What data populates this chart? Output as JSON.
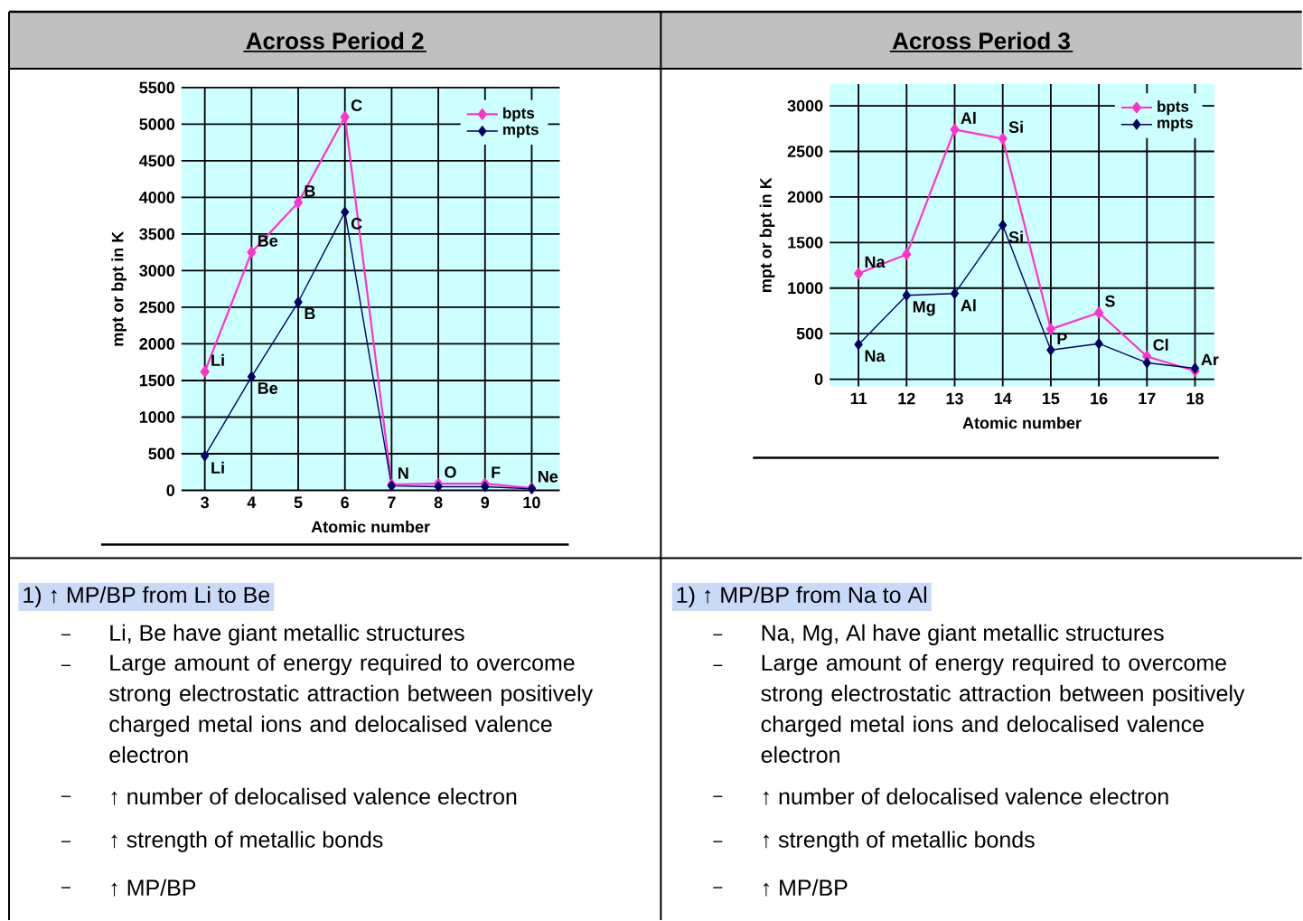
{
  "chart_data": [
    {
      "type": "line",
      "title": "Across Period 2",
      "xlabel": "Atomic number",
      "ylabel": "mpt or bpt in K",
      "x": [
        3,
        4,
        5,
        6,
        7,
        8,
        9,
        10
      ],
      "series": [
        {
          "name": "bpts",
          "color": "#ff33cc",
          "values": [
            1620,
            3250,
            3930,
            5100,
            80,
            90,
            90,
            30
          ]
        },
        {
          "name": "mpts",
          "color": "#000066",
          "values": [
            470,
            1550,
            2570,
            3800,
            60,
            50,
            50,
            20
          ]
        }
      ],
      "xlim": [
        2.5,
        10.6
      ],
      "ylim": [
        0,
        5500
      ],
      "xticks": [
        3,
        4,
        5,
        6,
        7,
        8,
        9,
        10
      ],
      "yticks": [
        0,
        500,
        1000,
        1500,
        2000,
        2500,
        3000,
        3500,
        4000,
        4500,
        5000,
        5500
      ],
      "grid": true,
      "legend": "top right",
      "marker": "diamond",
      "line_style": "solid",
      "annotations": [
        "1) ↑ MP/BP from Li to Be",
        "Li, Be have giant metallic structures",
        "Large amount of energy required to overcome strong electrostatic attraction between positively charged metal ions and delocalised valence electron",
        "↑ number of delocalised valence electron",
        "↑ strength of metallic bonds",
        "↑ MP/BP",
        {
          "text": "Li",
          "x": 3,
          "y": 1620
        },
        {
          "text": "Be",
          "x": 4,
          "y": 3250
        },
        {
          "text": "B",
          "x": 5,
          "y": 3930
        },
        {
          "text": "C",
          "x": 6,
          "y": 5100
        },
        {
          "text": "Li",
          "x": 3,
          "y": 470
        },
        {
          "text": "Be",
          "x": 4,
          "y": 1550
        },
        {
          "text": "B",
          "x": 5,
          "y": 2570
        },
        {
          "text": "C",
          "x": 6,
          "y": 3800
        },
        {
          "text": "N",
          "x": 7,
          "y": 80
        },
        {
          "text": "O",
          "x": 8,
          "y": 90
        },
        {
          "text": "F",
          "x": 9,
          "y": 90
        },
        {
          "text": "Ne",
          "x": 10,
          "y": 30
        }
      ]
    },
    {
      "type": "line",
      "title": "Across Period 3",
      "xlabel": "Atomic number",
      "ylabel": "mpt or bpt in K",
      "x": [
        11,
        12,
        13,
        14,
        15,
        16,
        17,
        18
      ],
      "series": [
        {
          "name": "bpts",
          "color": "#ff33cc",
          "values": [
            1160,
            1370,
            2740,
            2640,
            550,
            730,
            250,
            90
          ]
        },
        {
          "name": "mpts",
          "color": "#000066",
          "values": [
            380,
            920,
            940,
            1690,
            320,
            390,
            180,
            120
          ]
        }
      ],
      "xlim": [
        10.4,
        18.4
      ],
      "ylim": [
        -80,
        3240
      ],
      "xticks": [
        11,
        12,
        13,
        14,
        15,
        16,
        17,
        18
      ],
      "yticks": [
        0,
        500,
        1000,
        1500,
        2000,
        2500,
        3000
      ],
      "grid": true,
      "legend": "top right",
      "marker": "diamond",
      "line_style": "solid",
      "annotations": [
        "1) ↑ MP/BP from Na to Al",
        "Na, Mg, Al have giant metallic structures",
        "Large amount of energy required to overcome strong electrostatic attraction between positively charged metal ions and delocalised valence electron",
        "↑ number of delocalised valence electron",
        "↑ strength of metallic bonds",
        "↑ MP/BP",
        {
          "text": "Na",
          "x": 11,
          "y": 1160
        },
        {
          "text": "Mg",
          "x": 12,
          "y": 920
        },
        {
          "text": "Al",
          "x": 13,
          "y": 2740
        },
        {
          "text": "Si",
          "x": 14,
          "y": 2640
        },
        {
          "text": "S",
          "x": 16,
          "y": 730
        },
        {
          "text": "Na",
          "x": 11,
          "y": 380
        },
        {
          "text": "Al",
          "x": 13,
          "y": 940
        },
        {
          "text": "Si",
          "x": 14,
          "y": 1690
        },
        {
          "text": "P",
          "x": 15,
          "y": 320
        },
        {
          "text": "Cl",
          "x": 17,
          "y": 250
        },
        {
          "text": "Ar",
          "x": 18,
          "y": 90
        }
      ]
    }
  ]
}
